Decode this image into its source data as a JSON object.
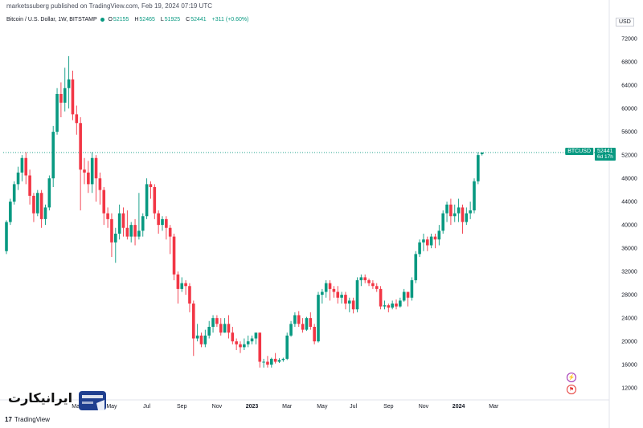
{
  "header": {
    "publisher": "marketssuberg published on TradingView.com, Feb 19, 2024 07:19 UTC"
  },
  "legend": {
    "symbol_desc": "Bitcoin / U.S. Dollar, 1W, BITSTAMP",
    "open_label": "O",
    "open_value": "52155",
    "high_label": "H",
    "high_value": "52465",
    "low_label": "L",
    "low_value": "51925",
    "close_label": "C",
    "close_value": "52441",
    "change": "+311 (+0.60%)"
  },
  "currency": "USD",
  "price_tag": {
    "ticker": "BTCUSD",
    "price": "52441",
    "countdown": "6d 17h"
  },
  "footer": {
    "brand": "TradingView",
    "watermark": "ایرانیکارت"
  },
  "colors": {
    "up": "#089981",
    "down": "#f23645",
    "grid": "#f0f3fa",
    "axis_text": "#131722",
    "last_line": "#089981"
  },
  "chart_data": {
    "type": "candlestick",
    "title": "",
    "xlabel": "",
    "ylabel": "",
    "yticks": [
      12000,
      16000,
      20000,
      24000,
      28000,
      32000,
      36000,
      40000,
      44000,
      48000,
      52000,
      56000,
      60000,
      64000,
      68000,
      72000
    ],
    "ylim": [
      10500,
      74500
    ],
    "x_tick_labels": [
      {
        "index": 18,
        "label": "Mar"
      },
      {
        "index": 27,
        "label": "May"
      },
      {
        "index": 36,
        "label": "Jul"
      },
      {
        "index": 45,
        "label": "Sep"
      },
      {
        "index": 54,
        "label": "Nov"
      },
      {
        "index": 63,
        "label": "2023"
      },
      {
        "index": 72,
        "label": "Mar"
      },
      {
        "index": 81,
        "label": "May"
      },
      {
        "index": 89,
        "label": "Jul"
      },
      {
        "index": 98,
        "label": "Sep"
      },
      {
        "index": 107,
        "label": "Nov"
      },
      {
        "index": 116,
        "label": "2024"
      },
      {
        "index": 125,
        "label": "Mar"
      }
    ],
    "grid": false,
    "last_price": 52441,
    "candles": [
      [
        35500,
        40500,
        35000,
        40800
      ],
      [
        40500,
        44000,
        40000,
        44500
      ],
      [
        44000,
        47000,
        43500,
        47500
      ],
      [
        47000,
        49000,
        46000,
        50000
      ],
      [
        49000,
        51500,
        47500,
        52000
      ],
      [
        51500,
        48500,
        47000,
        52500
      ],
      [
        48500,
        45000,
        43500,
        49500
      ],
      [
        45000,
        42000,
        40500,
        45500
      ],
      [
        42000,
        45500,
        41500,
        46000
      ],
      [
        45500,
        41000,
        39500,
        46000
      ],
      [
        41000,
        43000,
        40000,
        43500
      ],
      [
        43000,
        48000,
        42500,
        48500
      ],
      [
        48000,
        56000,
        46500,
        57000
      ],
      [
        56000,
        62500,
        55500,
        63500
      ],
      [
        62500,
        61000,
        58500,
        64500
      ],
      [
        61000,
        63500,
        59500,
        67000
      ],
      [
        63500,
        65000,
        60000,
        69000
      ],
      [
        65000,
        59000,
        58000,
        66500
      ],
      [
        59000,
        57500,
        55500,
        60500
      ],
      [
        57500,
        49500,
        42500,
        58500
      ],
      [
        49500,
        49000,
        47000,
        51500
      ],
      [
        49000,
        47000,
        45500,
        51000
      ],
      [
        47000,
        51500,
        45500,
        52500
      ],
      [
        51500,
        48000,
        44000,
        52000
      ],
      [
        48000,
        46000,
        43500,
        49000
      ],
      [
        46000,
        42000,
        40000,
        46500
      ],
      [
        42000,
        41000,
        39500,
        43000
      ],
      [
        41000,
        37000,
        34500,
        42000
      ],
      [
        37000,
        38500,
        33500,
        39500
      ],
      [
        38500,
        42000,
        37500,
        43500
      ],
      [
        42000,
        39500,
        38000,
        43000
      ],
      [
        39500,
        38000,
        37500,
        42500
      ],
      [
        38000,
        40000,
        37000,
        40500
      ],
      [
        40000,
        38000,
        36500,
        41000
      ],
      [
        38000,
        39000,
        37500,
        45500
      ],
      [
        39000,
        41500,
        38000,
        42000
      ],
      [
        41500,
        47000,
        41000,
        48000
      ],
      [
        47000,
        46500,
        44500,
        47500
      ],
      [
        46500,
        42000,
        41000,
        47000
      ],
      [
        42000,
        40000,
        38500,
        42500
      ],
      [
        40000,
        41000,
        39000,
        41500
      ],
      [
        41000,
        39500,
        37500,
        41500
      ],
      [
        39500,
        38000,
        35000,
        40000
      ],
      [
        38000,
        31500,
        30500,
        38500
      ],
      [
        31500,
        29000,
        26500,
        32000
      ],
      [
        29000,
        30000,
        28500,
        31000
      ],
      [
        30000,
        29500,
        28000,
        30500
      ],
      [
        29500,
        26500,
        25000,
        30000
      ],
      [
        26500,
        20500,
        17500,
        27000
      ],
      [
        20500,
        21000,
        20000,
        23000
      ],
      [
        21000,
        19500,
        19000,
        21500
      ],
      [
        19500,
        21000,
        19000,
        22000
      ],
      [
        21000,
        22500,
        20500,
        23500
      ],
      [
        22500,
        24000,
        21500,
        24500
      ],
      [
        24000,
        23000,
        22500,
        24500
      ],
      [
        23000,
        21500,
        21000,
        24000
      ],
      [
        21500,
        23000,
        21500,
        24000
      ],
      [
        23000,
        21500,
        20500,
        24500
      ],
      [
        21500,
        20000,
        19500,
        22500
      ],
      [
        20000,
        19500,
        18500,
        20500
      ],
      [
        19500,
        19000,
        18000,
        20000
      ],
      [
        19000,
        19500,
        18500,
        20500
      ],
      [
        19500,
        20000,
        19000,
        21000
      ],
      [
        20000,
        20500,
        19500,
        21000
      ],
      [
        20500,
        21500,
        19500,
        21000
      ],
      [
        21500,
        16500,
        15500,
        21500
      ],
      [
        16500,
        16500,
        15500,
        17000
      ],
      [
        16500,
        16000,
        15500,
        17500
      ],
      [
        16000,
        17000,
        15500,
        17200
      ],
      [
        17000,
        16500,
        16200,
        18000
      ],
      [
        16500,
        16800,
        16300,
        17100
      ],
      [
        16800,
        17000,
        16500,
        17200
      ],
      [
        17000,
        21000,
        16800,
        21500
      ],
      [
        21000,
        23000,
        20800,
        23500
      ],
      [
        23000,
        24500,
        22500,
        25000
      ],
      [
        24500,
        23000,
        22500,
        25200
      ],
      [
        23000,
        22000,
        21500,
        24000
      ],
      [
        22000,
        24000,
        21800,
        24200
      ],
      [
        24000,
        22500,
        22000,
        25000
      ],
      [
        22500,
        20000,
        19500,
        23000
      ],
      [
        20000,
        28000,
        19800,
        28500
      ],
      [
        28000,
        28500,
        26500,
        29000
      ],
      [
        28500,
        30000,
        27500,
        30500
      ],
      [
        30000,
        29000,
        27000,
        30500
      ],
      [
        29000,
        28500,
        27500,
        29500
      ],
      [
        28500,
        27500,
        26500,
        29500
      ],
      [
        27500,
        28000,
        26500,
        28500
      ],
      [
        28000,
        26500,
        25500,
        28500
      ],
      [
        26500,
        27000,
        25000,
        27500
      ],
      [
        27000,
        25500,
        24800,
        27500
      ],
      [
        25500,
        30500,
        25000,
        31000
      ],
      [
        30500,
        31000,
        29500,
        31500
      ],
      [
        31000,
        30500,
        30000,
        31500
      ],
      [
        30500,
        30000,
        29500,
        30800
      ],
      [
        30000,
        29500,
        29000,
        30500
      ],
      [
        29500,
        29000,
        28500,
        30000
      ],
      [
        29000,
        26000,
        25500,
        29500
      ],
      [
        26000,
        26200,
        25500,
        27000
      ],
      [
        26200,
        25800,
        25000,
        26500
      ],
      [
        25800,
        26500,
        25500,
        27000
      ],
      [
        26500,
        26000,
        25500,
        27200
      ],
      [
        26000,
        27000,
        25800,
        27500
      ],
      [
        27000,
        28500,
        26800,
        29000
      ],
      [
        28500,
        27500,
        26000,
        28500
      ],
      [
        27500,
        30500,
        27000,
        31000
      ],
      [
        30500,
        35000,
        30000,
        35500
      ],
      [
        35000,
        37000,
        34500,
        37500
      ],
      [
        37000,
        37500,
        35500,
        38500
      ],
      [
        37500,
        36500,
        35500,
        38000
      ],
      [
        36500,
        38000,
        36000,
        38500
      ],
      [
        38000,
        37500,
        36000,
        38500
      ],
      [
        37500,
        39000,
        36500,
        40000
      ],
      [
        39000,
        42000,
        38500,
        42500
      ],
      [
        42000,
        43500,
        40500,
        44000
      ],
      [
        43500,
        41500,
        40000,
        44500
      ],
      [
        41500,
        42000,
        40500,
        43500
      ],
      [
        42000,
        43000,
        40500,
        44500
      ],
      [
        43000,
        40500,
        38500,
        43500
      ],
      [
        40500,
        42000,
        40000,
        43000
      ],
      [
        42000,
        42500,
        41000,
        44000
      ],
      [
        42500,
        47500,
        42000,
        48000
      ],
      [
        47500,
        52000,
        47000,
        52500
      ],
      [
        52155,
        52441,
        51925,
        52465
      ]
    ]
  }
}
